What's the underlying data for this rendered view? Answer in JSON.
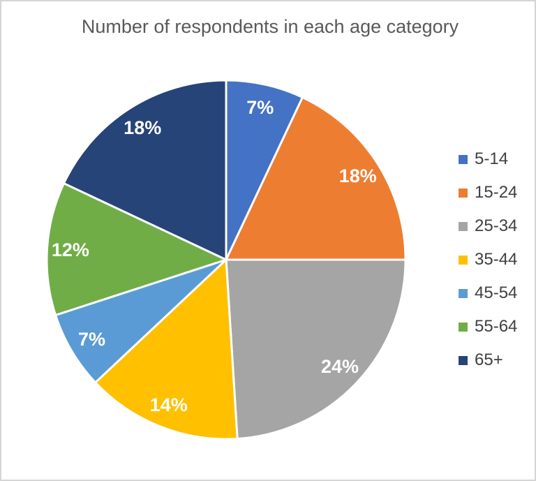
{
  "chart": {
    "background_color": "#FFFFFF",
    "border_color": "#D5D5D5"
  },
  "chart_data": {
    "type": "pie",
    "title": "Number of respondents in each age category",
    "categories": [
      "5-14",
      "15-24",
      "25-34",
      "35-44",
      "45-54",
      "55-64",
      "65+"
    ],
    "values": [
      7,
      18,
      24,
      14,
      7,
      12,
      18
    ],
    "slice_labels": [
      "7%",
      "18%",
      "24%",
      "14%",
      "7%",
      "12%",
      "18%"
    ],
    "colors": [
      "#4472C4",
      "#ED7D31",
      "#A5A5A5",
      "#FFC000",
      "#5B9BD5",
      "#70AD47",
      "#264478"
    ],
    "title_color": "#595959",
    "label_color": "#FFFFFF",
    "slice_border_color": "#FFFFFF",
    "start_angle_deg": 0,
    "direction": "clockwise",
    "legend": {
      "position": "right",
      "entries": [
        "5-14",
        "15-24",
        "25-34",
        "35-44",
        "45-54",
        "55-64",
        "65+"
      ],
      "text_color": "#404040"
    }
  }
}
